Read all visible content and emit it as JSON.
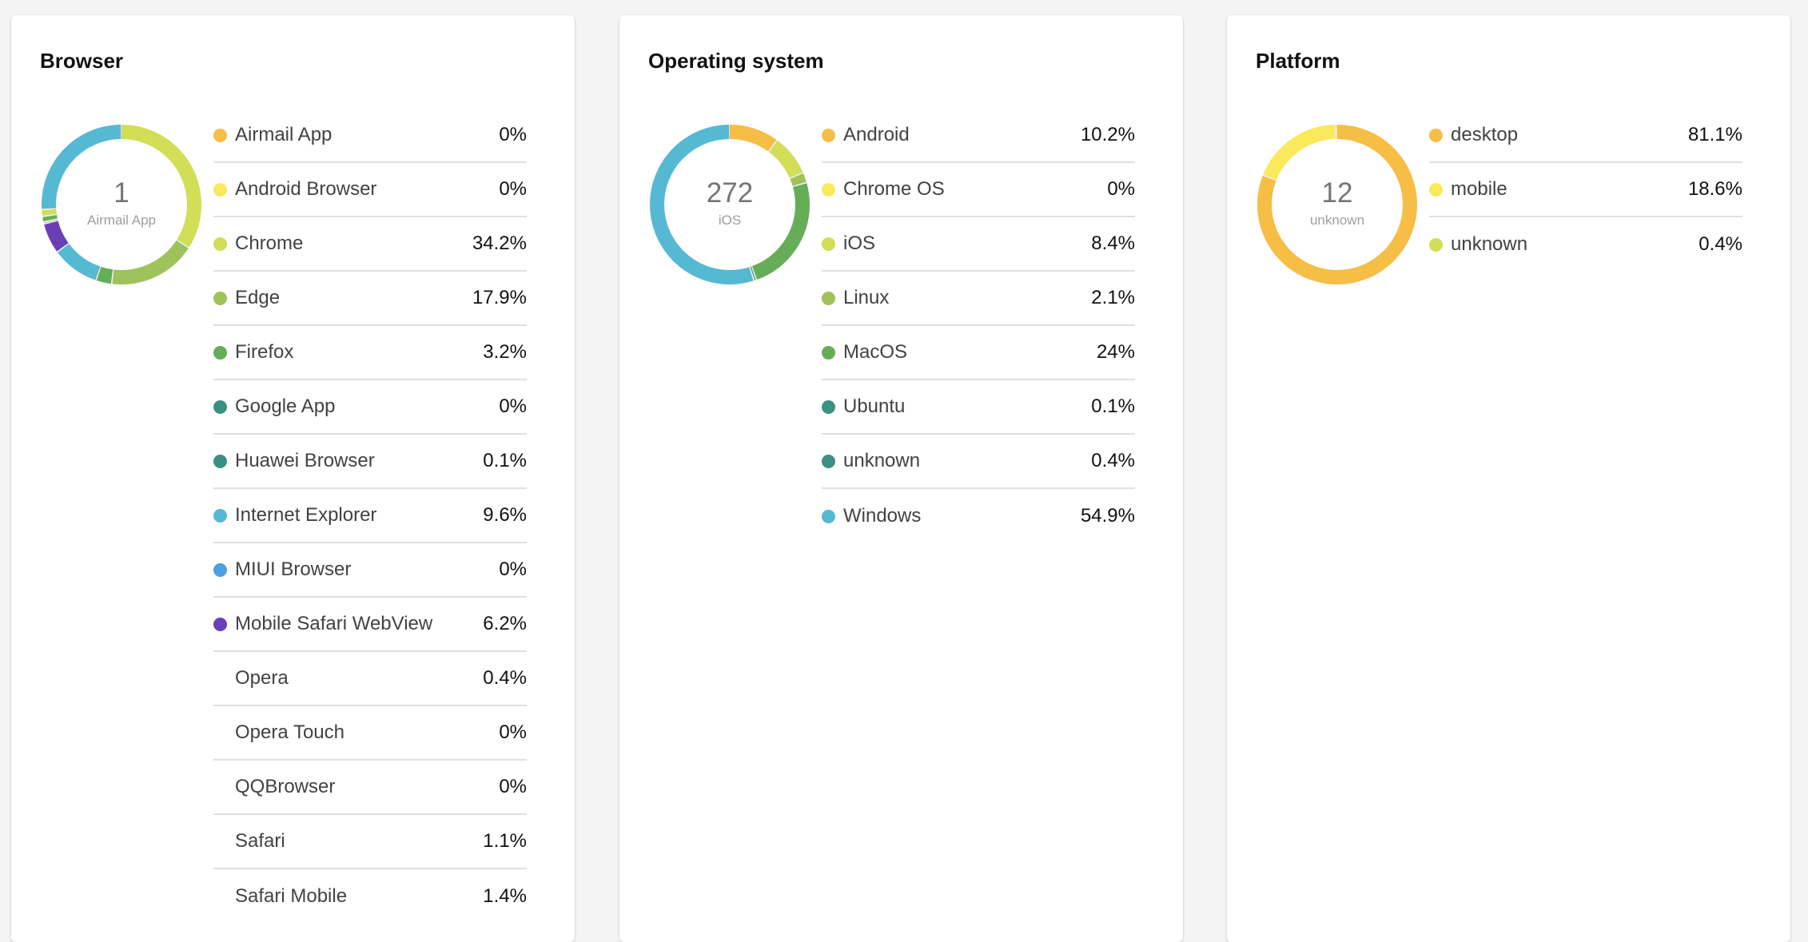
{
  "cards": [
    {
      "title": "Browser",
      "center_value": "1",
      "center_label": "Airmail App",
      "items": [
        {
          "label": "Airmail App",
          "value": "0%",
          "percent": 0,
          "color": "#f6be45"
        },
        {
          "label": "Android Browser",
          "value": "0%",
          "percent": 0,
          "color": "#fbe95c"
        },
        {
          "label": "Chrome",
          "value": "34.2%",
          "percent": 34.2,
          "color": "#d1de56"
        },
        {
          "label": "Edge",
          "value": "17.9%",
          "percent": 17.9,
          "color": "#9dc35a"
        },
        {
          "label": "Firefox",
          "value": "3.2%",
          "percent": 3.2,
          "color": "#66ad58"
        },
        {
          "label": "Google App",
          "value": "0%",
          "percent": 0,
          "color": "#3c9081"
        },
        {
          "label": "Huawei Browser",
          "value": "0.1%",
          "percent": 0.1,
          "color": "#3c9081"
        },
        {
          "label": "Internet Explorer",
          "value": "9.6%",
          "percent": 9.6,
          "color": "#56b9d3"
        },
        {
          "label": "MIUI Browser",
          "value": "0%",
          "percent": 0,
          "color": "#4c9fe0"
        },
        {
          "label": "Mobile Safari WebView",
          "value": "6.2%",
          "percent": 6.2,
          "color": "#6a3fb5"
        },
        {
          "label": "Opera",
          "value": "0.4%",
          "percent": 0.4,
          "color": "#9dc35a"
        },
        {
          "label": "Opera Touch",
          "value": "0%",
          "percent": 0,
          "color": ""
        },
        {
          "label": "QQBrowser",
          "value": "0%",
          "percent": 0,
          "color": ""
        },
        {
          "label": "Safari",
          "value": "1.1%",
          "percent": 1.1,
          "color": "#66ad58"
        },
        {
          "label": "Safari Mobile",
          "value": "1.4%",
          "percent": 1.4,
          "color": "#d1de56"
        }
      ],
      "legend_hide_dot_from": 10,
      "donut_tail_percent": 26.0,
      "donut_tail_color": "#56b9d3"
    },
    {
      "title": "Operating system",
      "center_value": "272",
      "center_label": "iOS",
      "items": [
        {
          "label": "Android",
          "value": "10.2%",
          "percent": 10.2,
          "color": "#f6be45"
        },
        {
          "label": "Chrome OS",
          "value": "0%",
          "percent": 0,
          "color": "#fbe95c"
        },
        {
          "label": "iOS",
          "value": "8.4%",
          "percent": 8.4,
          "color": "#d1de56"
        },
        {
          "label": "Linux",
          "value": "2.1%",
          "percent": 2.1,
          "color": "#9dc35a"
        },
        {
          "label": "MacOS",
          "value": "24%",
          "percent": 24,
          "color": "#66ad58"
        },
        {
          "label": "Ubuntu",
          "value": "0.1%",
          "percent": 0.1,
          "color": "#3c9081"
        },
        {
          "label": "unknown",
          "value": "0.4%",
          "percent": 0.4,
          "color": "#3c9081"
        },
        {
          "label": "Windows",
          "value": "54.9%",
          "percent": 54.9,
          "color": "#56b9d3"
        }
      ],
      "legend_hide_dot_from": 99,
      "donut_tail_percent": 0,
      "donut_tail_color": ""
    },
    {
      "title": "Platform",
      "center_value": "12",
      "center_label": "unknown",
      "items": [
        {
          "label": "desktop",
          "value": "81.1%",
          "percent": 81.1,
          "color": "#f6be45"
        },
        {
          "label": "mobile",
          "value": "18.6%",
          "percent": 18.6,
          "color": "#fbe95c"
        },
        {
          "label": "unknown",
          "value": "0.4%",
          "percent": 0.4,
          "color": "#d1de56"
        }
      ],
      "legend_hide_dot_from": 99,
      "donut_tail_percent": 0,
      "donut_tail_color": ""
    }
  ]
}
